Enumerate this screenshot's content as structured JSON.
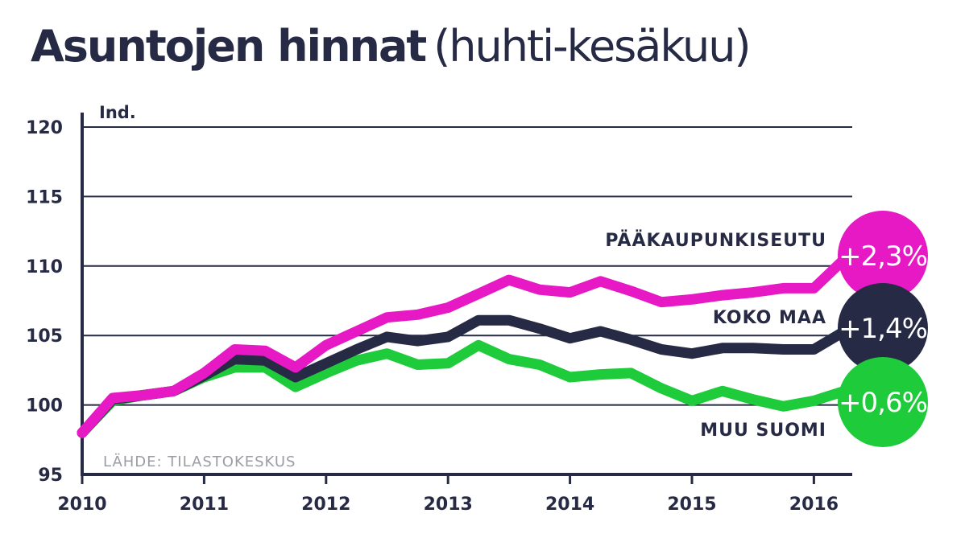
{
  "title": "Asuntojen hinnat",
  "subtitle": "(huhti-kesäkuu)",
  "source": "LÄHDE: TILASTOKESKUS",
  "colors": {
    "text": "#262a44",
    "grid": "#262a44",
    "paakaupunkiseutu": "#e619c4",
    "koko_maa": "#262a44",
    "muu_suomi": "#1ecb3a",
    "source": "#9a9ca8"
  },
  "chart_data": {
    "type": "line",
    "title": "Asuntojen hinnat",
    "subtitle": "(huhti-kesäkuu)",
    "ylabel": "Ind.",
    "xlabel": "",
    "ylim": [
      95,
      120
    ],
    "xlim": [
      2010.0,
      2016.3
    ],
    "yticks": [
      95,
      100,
      105,
      110,
      115,
      120
    ],
    "xticks": [
      "2010",
      "2011",
      "2012",
      "2013",
      "2014",
      "2015",
      "2016"
    ],
    "grid": "horizontal",
    "x": [
      2010.0,
      2010.25,
      2010.5,
      2010.75,
      2011.0,
      2011.25,
      2011.5,
      2011.75,
      2012.0,
      2012.25,
      2012.5,
      2012.75,
      2013.0,
      2013.25,
      2013.5,
      2013.75,
      2014.0,
      2014.25,
      2014.5,
      2014.75,
      2015.0,
      2015.25,
      2015.5,
      2015.75,
      2016.0,
      2016.25
    ],
    "series": [
      {
        "name": "PÄÄKAUPUNKISEUTU",
        "color": "#e619c4",
        "change": "+2,3%",
        "values": [
          98.0,
          100.5,
          100.7,
          101.0,
          102.3,
          104.0,
          103.9,
          102.7,
          104.3,
          105.3,
          106.3,
          106.5,
          107.0,
          108.0,
          109.0,
          108.3,
          108.1,
          108.9,
          108.2,
          107.4,
          107.6,
          107.9,
          108.1,
          108.4,
          108.4,
          110.5
        ]
      },
      {
        "name": "KOKO MAA",
        "color": "#262a44",
        "change": "+1,4%",
        "values": [
          98.0,
          100.4,
          100.7,
          101.0,
          102.1,
          103.3,
          103.2,
          102.0,
          103.0,
          104.0,
          104.9,
          104.6,
          104.9,
          106.1,
          106.1,
          105.5,
          104.8,
          105.3,
          104.7,
          104.0,
          103.7,
          104.1,
          104.1,
          104.0,
          104.0,
          105.3
        ]
      },
      {
        "name": "MUU SUOMI",
        "color": "#1ecb3a",
        "change": "+0,6%",
        "values": [
          98.0,
          100.3,
          100.7,
          101.0,
          102.0,
          102.7,
          102.7,
          101.3,
          102.3,
          103.2,
          103.7,
          102.9,
          103.0,
          104.3,
          103.3,
          102.9,
          102.0,
          102.2,
          102.3,
          101.2,
          100.3,
          101.0,
          100.4,
          99.9,
          100.3,
          101.0
        ]
      }
    ]
  }
}
